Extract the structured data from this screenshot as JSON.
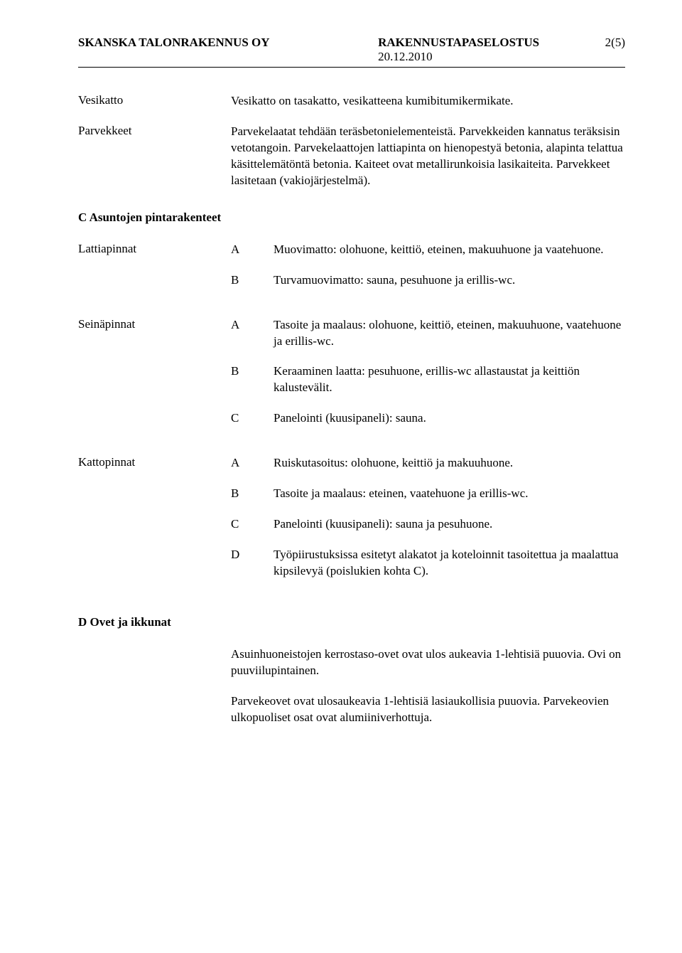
{
  "header": {
    "company": "SKANSKA TALONRAKENNUS OY",
    "docTitle": "RAKENNUSTAPASELOSTUS",
    "date": "20.12.2010",
    "pageNum": "2(5)"
  },
  "intro": {
    "vesikatto": {
      "label": "Vesikatto",
      "text": "Vesikatto on tasakatto, vesikatteena kumibitumikermikate."
    },
    "parvekkeet": {
      "label": "Parvekkeet",
      "text": "Parvekelaatat tehdään teräsbetonielementeistä. Parvekkeiden kannatus teräksisin vetotangoin. Parvekelaattojen lattiapinta on hienopestyä betonia, alapinta telattua käsittelemätöntä betonia. Kaiteet ovat metallirunkoisia lasikaiteita. Parvekkeet lasitetaan (vakiojärjestelmä)."
    }
  },
  "sectionC": {
    "title": "C  Asuntojen pintarakenteet",
    "lattia": {
      "label": "Lattiapinnat",
      "items": [
        {
          "letter": "A",
          "text": "Muovimatto: olohuone, keittiö, eteinen, makuuhuone ja vaatehuone."
        },
        {
          "letter": "B",
          "text": "Turvamuovimatto: sauna, pesuhuone ja erillis-wc."
        }
      ]
    },
    "seina": {
      "label": "Seinäpinnat",
      "items": [
        {
          "letter": "A",
          "text": "Tasoite ja maalaus: olohuone, keittiö, eteinen, makuuhuone, vaatehuone ja erillis-wc."
        },
        {
          "letter": "B",
          "text": "Keraaminen laatta: pesuhuone, erillis-wc allastaustat ja keittiön kalustevälit."
        },
        {
          "letter": "C",
          "text": "Panelointi (kuusipaneli): sauna."
        }
      ]
    },
    "katto": {
      "label": "Kattopinnat",
      "items": [
        {
          "letter": "A",
          "text": "Ruiskutasoitus: olohuone, keittiö ja makuuhuone."
        },
        {
          "letter": "B",
          "text": "Tasoite ja maalaus: eteinen, vaatehuone ja erillis-wc."
        },
        {
          "letter": "C",
          "text": "Panelointi (kuusipaneli): sauna ja pesuhuone."
        },
        {
          "letter": "D",
          "text": "Työpiirustuksissa esitetyt alakatot ja koteloinnit tasoitettua ja maalattua kipsilevyä (poislukien kohta C)."
        }
      ]
    }
  },
  "sectionD": {
    "title": "D  Ovet ja ikkunat",
    "paras": [
      "Asuinhuoneistojen kerrostaso-ovet ovat ulos aukeavia 1-lehtisiä puuovia. Ovi on puuviilupintainen.",
      "Parvekeovet ovat ulosaukeavia 1-lehtisiä lasiaukollisia puuovia. Parvekeovien ulkopuoliset osat ovat alumiiniverhottuja."
    ]
  }
}
